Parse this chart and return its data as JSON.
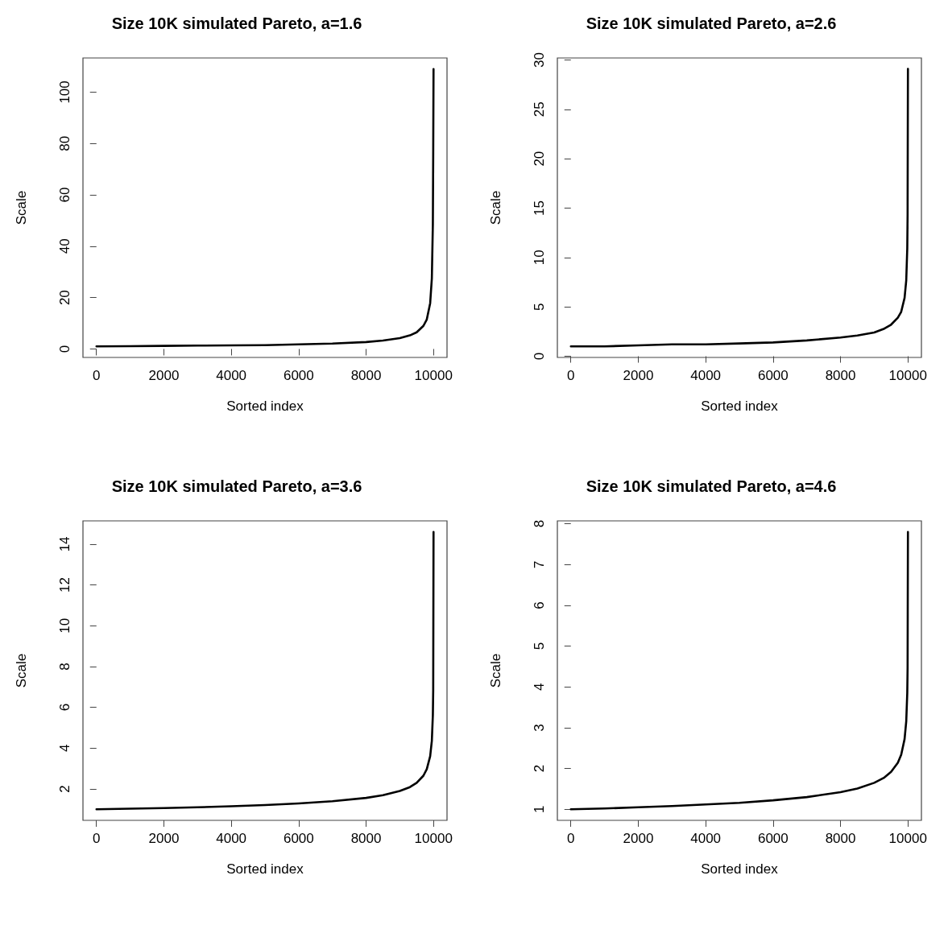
{
  "chart_data": [
    {
      "type": "line",
      "title": "Size 10K simulated Pareto, a=1.6",
      "xlabel": "Sorted index",
      "ylabel": "Scale",
      "x": [
        1,
        1000,
        2000,
        3000,
        4000,
        5000,
        6000,
        7000,
        8000,
        8500,
        9000,
        9300,
        9500,
        9700,
        9800,
        9900,
        9950,
        9980,
        9990,
        10000
      ],
      "series": [
        {
          "color": "#000000",
          "values": [
            1.0,
            1.1,
            1.2,
            1.3,
            1.4,
            1.5,
            1.8,
            2.1,
            2.7,
            3.3,
            4.2,
            5.3,
            6.5,
            9.0,
            11.5,
            17.8,
            27.5,
            48.6,
            75,
            109
          ]
        }
      ],
      "xlim": [
        -400,
        10400
      ],
      "xticks": [
        0,
        2000,
        4000,
        6000,
        8000,
        10000
      ],
      "ylim": [
        -3.3,
        113.3
      ],
      "yticks": [
        0,
        20,
        40,
        60,
        80,
        100
      ],
      "grid": false,
      "marker": "none",
      "line_style": "solid"
    },
    {
      "type": "line",
      "title": "Size 10K simulated Pareto, a=2.6",
      "xlabel": "Sorted index",
      "ylabel": "Scale",
      "x": [
        1,
        1000,
        2000,
        3000,
        4000,
        5000,
        6000,
        7000,
        8000,
        8500,
        9000,
        9300,
        9500,
        9700,
        9800,
        9900,
        9950,
        9980,
        9990,
        10000
      ],
      "series": [
        {
          "color": "#000000",
          "values": [
            1.0,
            1.0,
            1.1,
            1.2,
            1.2,
            1.3,
            1.4,
            1.6,
            1.9,
            2.1,
            2.4,
            2.8,
            3.2,
            3.9,
            4.5,
            5.9,
            7.7,
            10.9,
            14.3,
            29.1
          ]
        }
      ],
      "xlim": [
        -400,
        10400
      ],
      "xticks": [
        0,
        2000,
        4000,
        6000,
        8000,
        10000
      ],
      "ylim": [
        -0.12,
        30.2
      ],
      "yticks": [
        0,
        5,
        10,
        15,
        20,
        25,
        30
      ],
      "grid": false,
      "marker": "none",
      "line_style": "solid"
    },
    {
      "type": "line",
      "title": "Size 10K simulated Pareto, a=3.6",
      "xlabel": "Sorted index",
      "ylabel": "Scale",
      "x": [
        1,
        1000,
        2000,
        3000,
        4000,
        5000,
        6000,
        7000,
        8000,
        8500,
        9000,
        9300,
        9500,
        9700,
        9800,
        9900,
        9950,
        9980,
        9990,
        10000
      ],
      "series": [
        {
          "color": "#000000",
          "values": [
            1.0,
            1.03,
            1.06,
            1.1,
            1.15,
            1.21,
            1.29,
            1.4,
            1.56,
            1.69,
            1.9,
            2.09,
            2.3,
            2.65,
            2.97,
            3.6,
            4.36,
            5.62,
            6.81,
            14.6
          ]
        }
      ],
      "xlim": [
        -400,
        10400
      ],
      "xticks": [
        0,
        2000,
        4000,
        6000,
        8000,
        10000
      ],
      "ylim": [
        0.46,
        15.14
      ],
      "yticks": [
        2,
        4,
        6,
        8,
        10,
        12,
        14
      ],
      "grid": false,
      "marker": "none",
      "line_style": "solid"
    },
    {
      "type": "line",
      "title": "Size 10K simulated Pareto, a=4.6",
      "xlabel": "Sorted index",
      "ylabel": "Scale",
      "x": [
        1,
        1000,
        2000,
        3000,
        4000,
        5000,
        6000,
        7000,
        8000,
        8500,
        9000,
        9300,
        9500,
        9700,
        9800,
        9900,
        9950,
        9980,
        9990,
        10000
      ],
      "series": [
        {
          "color": "#000000",
          "values": [
            1.0,
            1.02,
            1.05,
            1.08,
            1.12,
            1.16,
            1.22,
            1.3,
            1.42,
            1.51,
            1.65,
            1.78,
            1.92,
            2.14,
            2.34,
            2.72,
            3.16,
            3.85,
            4.47,
            7.8
          ]
        }
      ],
      "xlim": [
        -400,
        10400
      ],
      "xticks": [
        0,
        2000,
        4000,
        6000,
        8000,
        10000
      ],
      "ylim": [
        0.73,
        8.07
      ],
      "yticks": [
        1,
        2,
        3,
        4,
        5,
        6,
        7,
        8
      ],
      "grid": false,
      "marker": "none",
      "line_style": "solid"
    }
  ]
}
